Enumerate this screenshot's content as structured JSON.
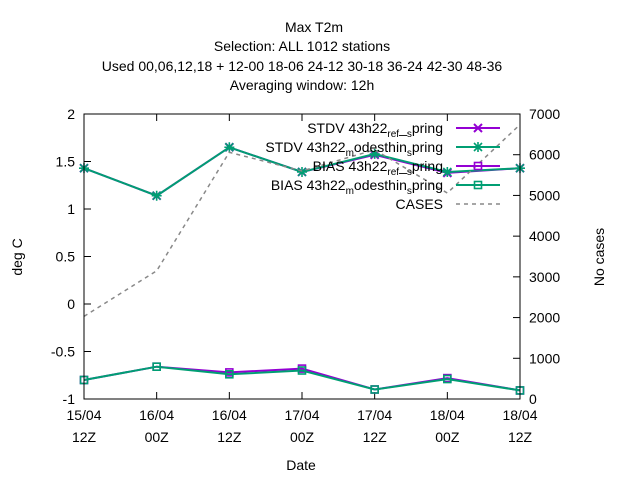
{
  "title_lines": [
    "Max T2m",
    "Selection: ALL   1012 stations",
    "Used  00,06,12,18  + 12-00 18-06 24-12 30-18 36-24 42-30 48-36",
    "Averaging window: 12h"
  ],
  "chart_data": {
    "type": "line",
    "xlabel": "Date",
    "ylabel": "deg C",
    "y2label": "No cases",
    "ylim": [
      -1,
      2
    ],
    "y2lim": [
      0,
      7000
    ],
    "y_ticks": [
      -1,
      -0.5,
      0,
      0.5,
      1,
      1.5,
      2
    ],
    "y_tick_labels": [
      "-1",
      "-0.5",
      "0",
      "0.5",
      "1",
      "1.5",
      "2"
    ],
    "y2_ticks": [
      0,
      1000,
      2000,
      3000,
      4000,
      5000,
      6000,
      7000
    ],
    "y2_tick_labels": [
      "0",
      "1000",
      "2000",
      "3000",
      "4000",
      "5000",
      "6000",
      "7000"
    ],
    "x": [
      0,
      1,
      2,
      3,
      4,
      5,
      6
    ],
    "x_tick_labels": [
      [
        "15/04",
        "12Z"
      ],
      [
        "16/04",
        "00Z"
      ],
      [
        "16/04",
        "12Z"
      ],
      [
        "17/04",
        "00Z"
      ],
      [
        "17/04",
        "12Z"
      ],
      [
        "18/04",
        "00Z"
      ],
      [
        "18/04",
        "12Z"
      ]
    ],
    "grid": false,
    "legend_position": "top-right",
    "series": [
      {
        "name": "STDV 43h22_ref_spring",
        "label_base": "STDV 43h22",
        "label_sub": "ref",
        "label_sep": "_",
        "label_sub2": "s",
        "label_tail": "pring",
        "axis": "y",
        "color": "#9400d3",
        "marker": "x",
        "values": [
          1.43,
          1.14,
          1.65,
          1.39,
          1.57,
          1.38,
          1.43
        ]
      },
      {
        "name": "STDV 43h22_modesthin_spring",
        "label_base": "STDV 43h22",
        "label_sub": "m",
        "label_sep": "odesthin",
        "label_sub2": "s",
        "label_tail": "pring",
        "axis": "y",
        "color": "#009e73",
        "marker": "star",
        "values": [
          1.43,
          1.14,
          1.65,
          1.39,
          1.58,
          1.39,
          1.43
        ]
      },
      {
        "name": "BIAS 43h22_ref_spring",
        "label_base": "BIAS 43h22",
        "label_sub": "ref",
        "label_sep": "_",
        "label_sub2": "s",
        "label_tail": "pring",
        "axis": "y",
        "color": "#9400d3",
        "marker": "square",
        "values": [
          -0.8,
          -0.66,
          -0.72,
          -0.68,
          -0.9,
          -0.78,
          -0.91
        ]
      },
      {
        "name": "BIAS 43h22_modesthin_spring",
        "label_base": "BIAS 43h22",
        "label_sub": "m",
        "label_sep": "odesthin",
        "label_sub2": "s",
        "label_tail": "pring",
        "axis": "y",
        "color": "#009e73",
        "marker": "square",
        "values": [
          -0.8,
          -0.66,
          -0.74,
          -0.7,
          -0.9,
          -0.79,
          -0.91
        ]
      },
      {
        "name": "CASES",
        "axis": "y2",
        "color": "#888888",
        "dashed": true,
        "marker": "none",
        "values": [
          2030,
          3150,
          6060,
          5600,
          6120,
          5060,
          6740
        ]
      }
    ]
  }
}
